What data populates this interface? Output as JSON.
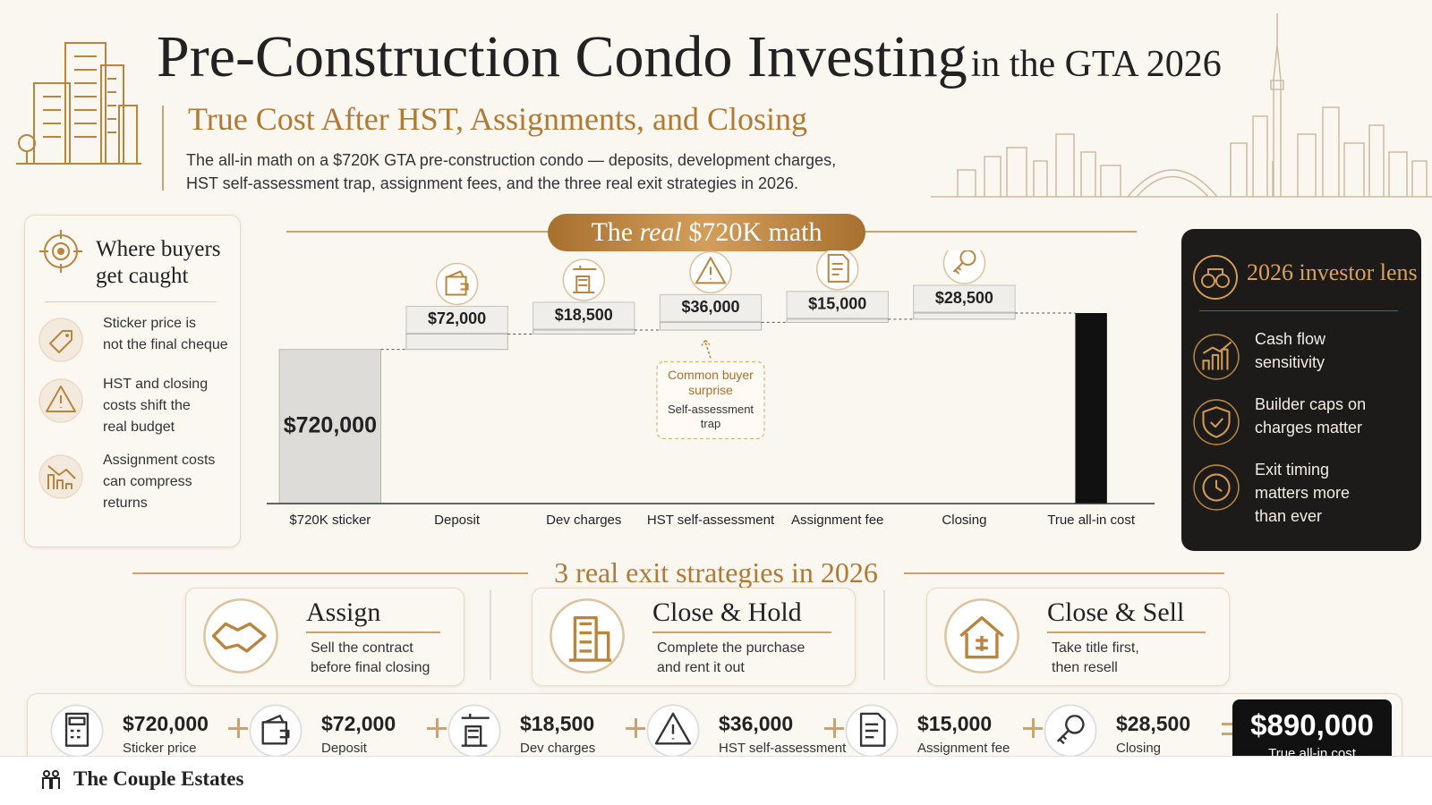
{
  "header": {
    "title": "Pre-Construction Condo Investing",
    "title_suffix": "in the GTA 2026",
    "subtitle": "True Cost After HST, Assignments, and Closing",
    "description": [
      "The all-in math on a $720K GTA pre-construction condo — deposits, development charges,",
      "HST self-assessment trap, assignment fees, and the three real exit strategies in 2026."
    ]
  },
  "left_panel": {
    "title": [
      "Where buyers",
      "get caught"
    ],
    "items": [
      [
        "Sticker price is",
        "not the final cheque"
      ],
      [
        "HST and closing",
        "costs shift the",
        "real budget"
      ],
      [
        "Assignment costs",
        "can compress",
        "returns"
      ]
    ]
  },
  "chart_data": {
    "type": "waterfall",
    "banner": {
      "before": "The",
      "emphasis": "real",
      "after": "$720K math"
    },
    "categories": [
      "$720K sticker",
      "Deposit",
      "Dev charges",
      "HST self-assessment",
      "Assignment fee",
      "Closing",
      "True all-in cost"
    ],
    "values": [
      720000,
      72000,
      18500,
      36000,
      15000,
      28500,
      890000
    ],
    "value_labels": [
      "$720,000",
      "$72,000",
      "$18,500",
      "$36,000",
      "$15,000",
      "$28,500",
      null
    ],
    "measures": [
      "absolute",
      "relative",
      "relative",
      "relative",
      "relative",
      "relative",
      "total"
    ],
    "colors": {
      "absolute": "#dedcd8",
      "relative": "#efeeeb",
      "total": "#111111"
    },
    "annotation": {
      "title": [
        "Common buyer",
        "surprise"
      ],
      "text": [
        "Self-assessment",
        "trap"
      ]
    }
  },
  "right_panel": {
    "title": "2026 investor lens",
    "items": [
      [
        "Cash flow",
        "sensitivity"
      ],
      [
        "Builder caps on",
        "charges matter"
      ],
      [
        "Exit timing",
        "matters more",
        "than ever"
      ]
    ]
  },
  "exits": {
    "title": "3 real exit strategies in 2026",
    "cards": [
      {
        "title": "Assign",
        "text": [
          "Sell the contract",
          "before final closing"
        ]
      },
      {
        "title": "Close & Hold",
        "text": [
          "Complete the purchase",
          "and rent it out"
        ]
      },
      {
        "title": "Close & Sell",
        "text": [
          "Take title first,",
          "then resell"
        ]
      }
    ]
  },
  "equation": {
    "items": [
      {
        "value": "$720,000",
        "label": "Sticker price"
      },
      {
        "value": "$72,000",
        "label": "Deposit"
      },
      {
        "value": "$18,500",
        "label": "Dev charges"
      },
      {
        "value": "$36,000",
        "label": "HST self-assessment"
      },
      {
        "value": "$15,000",
        "label": "Assignment fee"
      },
      {
        "value": "$28,500",
        "label": "Closing"
      }
    ],
    "total": {
      "value": "$890,000",
      "label": "True all-in cost"
    }
  },
  "footer": {
    "brand": "The Couple Estates"
  }
}
